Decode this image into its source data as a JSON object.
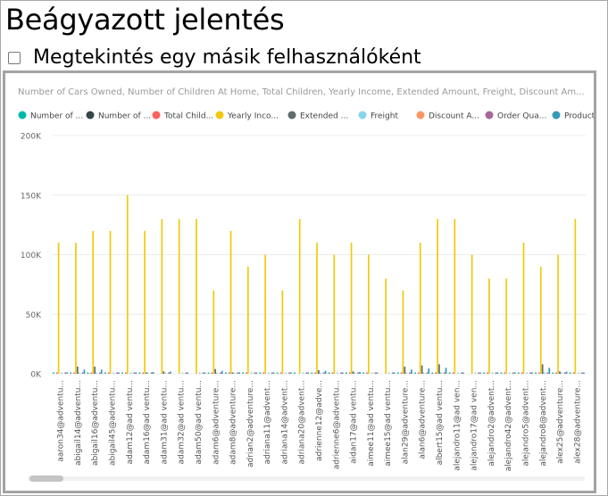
{
  "page": {
    "title": "Beágyazott jelentés",
    "view_as_label": "Megtekintés egy másik felhasználóként"
  },
  "chart_data": {
    "type": "bar",
    "title": "Number of Cars Owned, Number of Children At Home, Total Children, Yearly Income, Extended Amount, Freight, Discount Am...",
    "ylim": [
      0,
      200000
    ],
    "ytick_labels": [
      "0K",
      "50K",
      "100K",
      "150K",
      "200K"
    ],
    "yticks": [
      0,
      50000,
      100000,
      150000,
      200000
    ],
    "legend_position": "top-left",
    "legend": [
      {
        "label": "Number of ...",
        "color": "#01B8AA"
      },
      {
        "label": "Number of ...",
        "color": "#374649"
      },
      {
        "label": "Total Child...",
        "color": "#FD625E"
      },
      {
        "label": "Yearly Inco...",
        "color": "#F2C80F"
      },
      {
        "label": "Extended ...",
        "color": "#5F6B6D"
      },
      {
        "label": "Freight",
        "color": "#8AD4EB"
      },
      {
        "label": "Discount A...",
        "color": "#FE9666"
      },
      {
        "label": "Order Qua...",
        "color": "#A66999"
      },
      {
        "label": "Product St...",
        "color": "#3599B8"
      }
    ],
    "categories": [
      "aaron34@adventu...",
      "abigail14@adventu...",
      "abigail16@adventu...",
      "abigail45@adventu...",
      "adam12@ad ventu...",
      "adam16@ad ventu...",
      "adam31@ad ventu...",
      "adam32@ad ventu...",
      "adam50@ad ventu...",
      "adam6@adventure...",
      "adam8@adventure...",
      "adrian2@adventure...",
      "adriana11@advent...",
      "adriana14@advent...",
      "adriana20@advent...",
      "adrienne12@adve...",
      "adrienne6@adventu...",
      "aidan17@ad ventu...",
      "aimee11@ad ventu...",
      "aimee15@ad ventu...",
      "alan29@adventure...",
      "alan6@adventure...",
      "albert15@ad ventu...",
      "alejandro11@ad ven...",
      "alejandro17@ad ven...",
      "alejandro2@advent...",
      "alejandro42@advent...",
      "alejandro5@advent...",
      "alejandro8@advent...",
      "alex25@adventure...",
      "alex28@adventure..."
    ],
    "series": [
      {
        "name": "Number of Cars Owned",
        "values": [
          2,
          1,
          2,
          1,
          2,
          1,
          0,
          0,
          0,
          2,
          2,
          2,
          1,
          1,
          1,
          2,
          1,
          1,
          1,
          0,
          1,
          2,
          2,
          2,
          0,
          1,
          1,
          2,
          2,
          2,
          2
        ]
      },
      {
        "name": "Number of Children At Home",
        "values": [
          0,
          0,
          0,
          0,
          0,
          0,
          0,
          0,
          0,
          0,
          0,
          0,
          0,
          0,
          0,
          0,
          0,
          0,
          0,
          0,
          0,
          0,
          0,
          0,
          0,
          0,
          0,
          0,
          0,
          0,
          0
        ]
      },
      {
        "name": "Total Children",
        "values": [
          2,
          3,
          1,
          2,
          2,
          1,
          0,
          0,
          0,
          4,
          2,
          1,
          3,
          2,
          0,
          3,
          1,
          2,
          1,
          0,
          2,
          1,
          1,
          4,
          0,
          2,
          1,
          3,
          1,
          2,
          1
        ]
      },
      {
        "name": "Yearly Income",
        "values": [
          110000,
          110000,
          120000,
          120000,
          150000,
          120000,
          130000,
          130000,
          130000,
          70000,
          120000,
          90000,
          100000,
          70000,
          130000,
          110000,
          100000,
          110000,
          100000,
          80000,
          70000,
          110000,
          130000,
          130000,
          100000,
          80000,
          80000,
          110000,
          90000,
          100000,
          130000
        ]
      },
      {
        "name": "Extended Amount",
        "values": [
          0,
          6000,
          6000,
          0,
          0,
          1000,
          2000,
          0,
          0,
          4000,
          1000,
          0,
          0,
          0,
          0,
          3000,
          0,
          2000,
          0,
          0,
          6000,
          7000,
          8000,
          0,
          0,
          0,
          0,
          0,
          8000,
          2000,
          0
        ]
      },
      {
        "name": "Freight",
        "values": [
          500,
          1000,
          1000,
          300,
          300,
          800,
          600,
          300,
          300,
          900,
          600,
          300,
          300,
          300,
          300,
          900,
          300,
          800,
          300,
          300,
          1200,
          1200,
          1400,
          300,
          300,
          300,
          300,
          300,
          1400,
          700,
          300
        ]
      },
      {
        "name": "Discount Amount",
        "values": [
          0,
          0,
          0,
          0,
          0,
          0,
          0,
          0,
          0,
          0,
          0,
          0,
          0,
          0,
          0,
          0,
          0,
          0,
          0,
          0,
          0,
          0,
          0,
          0,
          0,
          0,
          0,
          0,
          0,
          0,
          0
        ]
      },
      {
        "name": "Order Quantity",
        "values": [
          3,
          5,
          5,
          2,
          2,
          4,
          4,
          2,
          2,
          5,
          4,
          2,
          2,
          2,
          2,
          5,
          2,
          4,
          2,
          2,
          6,
          6,
          7,
          2,
          2,
          2,
          2,
          2,
          7,
          4,
          2
        ]
      },
      {
        "name": "Product Standard Cost",
        "values": [
          800,
          3500,
          3500,
          400,
          500,
          1500,
          1800,
          400,
          400,
          2500,
          1200,
          400,
          400,
          400,
          400,
          2500,
          400,
          1600,
          400,
          400,
          3500,
          4500,
          5000,
          400,
          400,
          400,
          400,
          400,
          5000,
          1800,
          400
        ]
      }
    ]
  }
}
